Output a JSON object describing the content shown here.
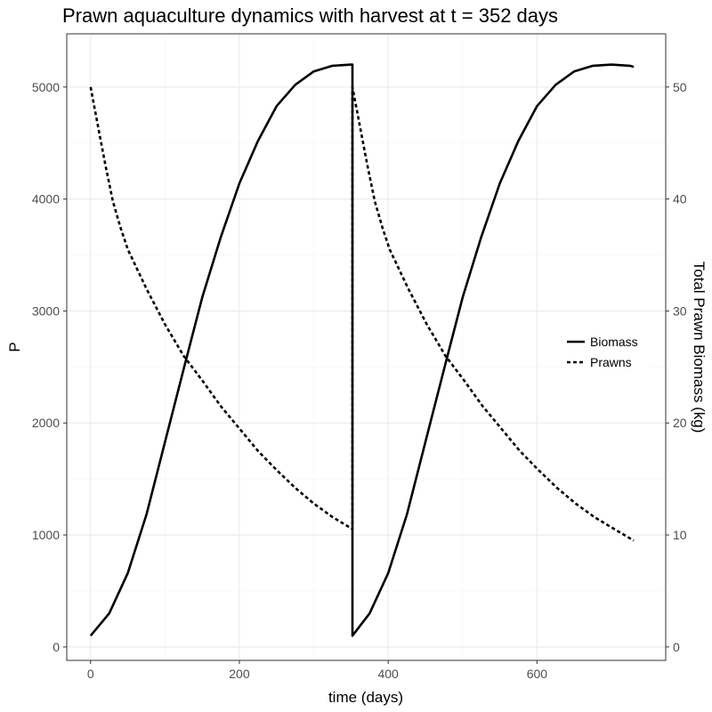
{
  "chart_data": {
    "type": "line",
    "title": "Prawn aquaculture dynamics with harvest at t = 352 days",
    "xlabel": "time (days)",
    "ylabel": "P",
    "y2label": "Total Prawn Biomass (kg)",
    "xlim": [
      -32,
      773
    ],
    "ylim": [
      -120,
      5475
    ],
    "y2lim": [
      -1.2,
      54.75
    ],
    "x_ticks": [
      0,
      200,
      400,
      600
    ],
    "y_ticks": [
      0,
      1000,
      2000,
      3000,
      4000,
      5000
    ],
    "y2_ticks": [
      0,
      10,
      20,
      30,
      40,
      50
    ],
    "grid": true,
    "legend_position": "right",
    "series": [
      {
        "name": "Biomass",
        "line_style": "solid",
        "axis": "right",
        "x": [
          0,
          25,
          50,
          75,
          100,
          125,
          150,
          175,
          200,
          225,
          250,
          275,
          300,
          325,
          350,
          352,
          352,
          375,
          400,
          425,
          450,
          475,
          500,
          525,
          550,
          575,
          600,
          625,
          650,
          675,
          700,
          725,
          730
        ],
        "y": [
          1.0,
          3.0,
          6.6,
          11.8,
          18.3,
          24.8,
          31.2,
          36.6,
          41.4,
          45.2,
          48.3,
          50.2,
          51.4,
          51.9,
          52.0,
          52.0,
          1.0,
          3.0,
          6.6,
          11.8,
          18.3,
          24.8,
          31.2,
          36.6,
          41.4,
          45.2,
          48.3,
          50.2,
          51.4,
          51.9,
          52.0,
          51.9,
          51.8
        ]
      },
      {
        "name": "Prawns",
        "line_style": "dashed",
        "axis": "left",
        "x": [
          0,
          10,
          20,
          30,
          40,
          50,
          75,
          100,
          125,
          150,
          175,
          200,
          225,
          250,
          275,
          300,
          325,
          350,
          352,
          352,
          362,
          372,
          382,
          392,
          402,
          427,
          452,
          477,
          502,
          527,
          552,
          577,
          602,
          627,
          652,
          677,
          702,
          730
        ],
        "y": [
          5000,
          4650,
          4300,
          3980,
          3750,
          3550,
          3200,
          2880,
          2600,
          2380,
          2150,
          1950,
          1750,
          1580,
          1420,
          1280,
          1160,
          1060,
          1050,
          5000,
          4650,
          4300,
          3980,
          3750,
          3550,
          3200,
          2880,
          2600,
          2380,
          2150,
          1950,
          1750,
          1580,
          1420,
          1280,
          1160,
          1060,
          950
        ]
      }
    ]
  }
}
